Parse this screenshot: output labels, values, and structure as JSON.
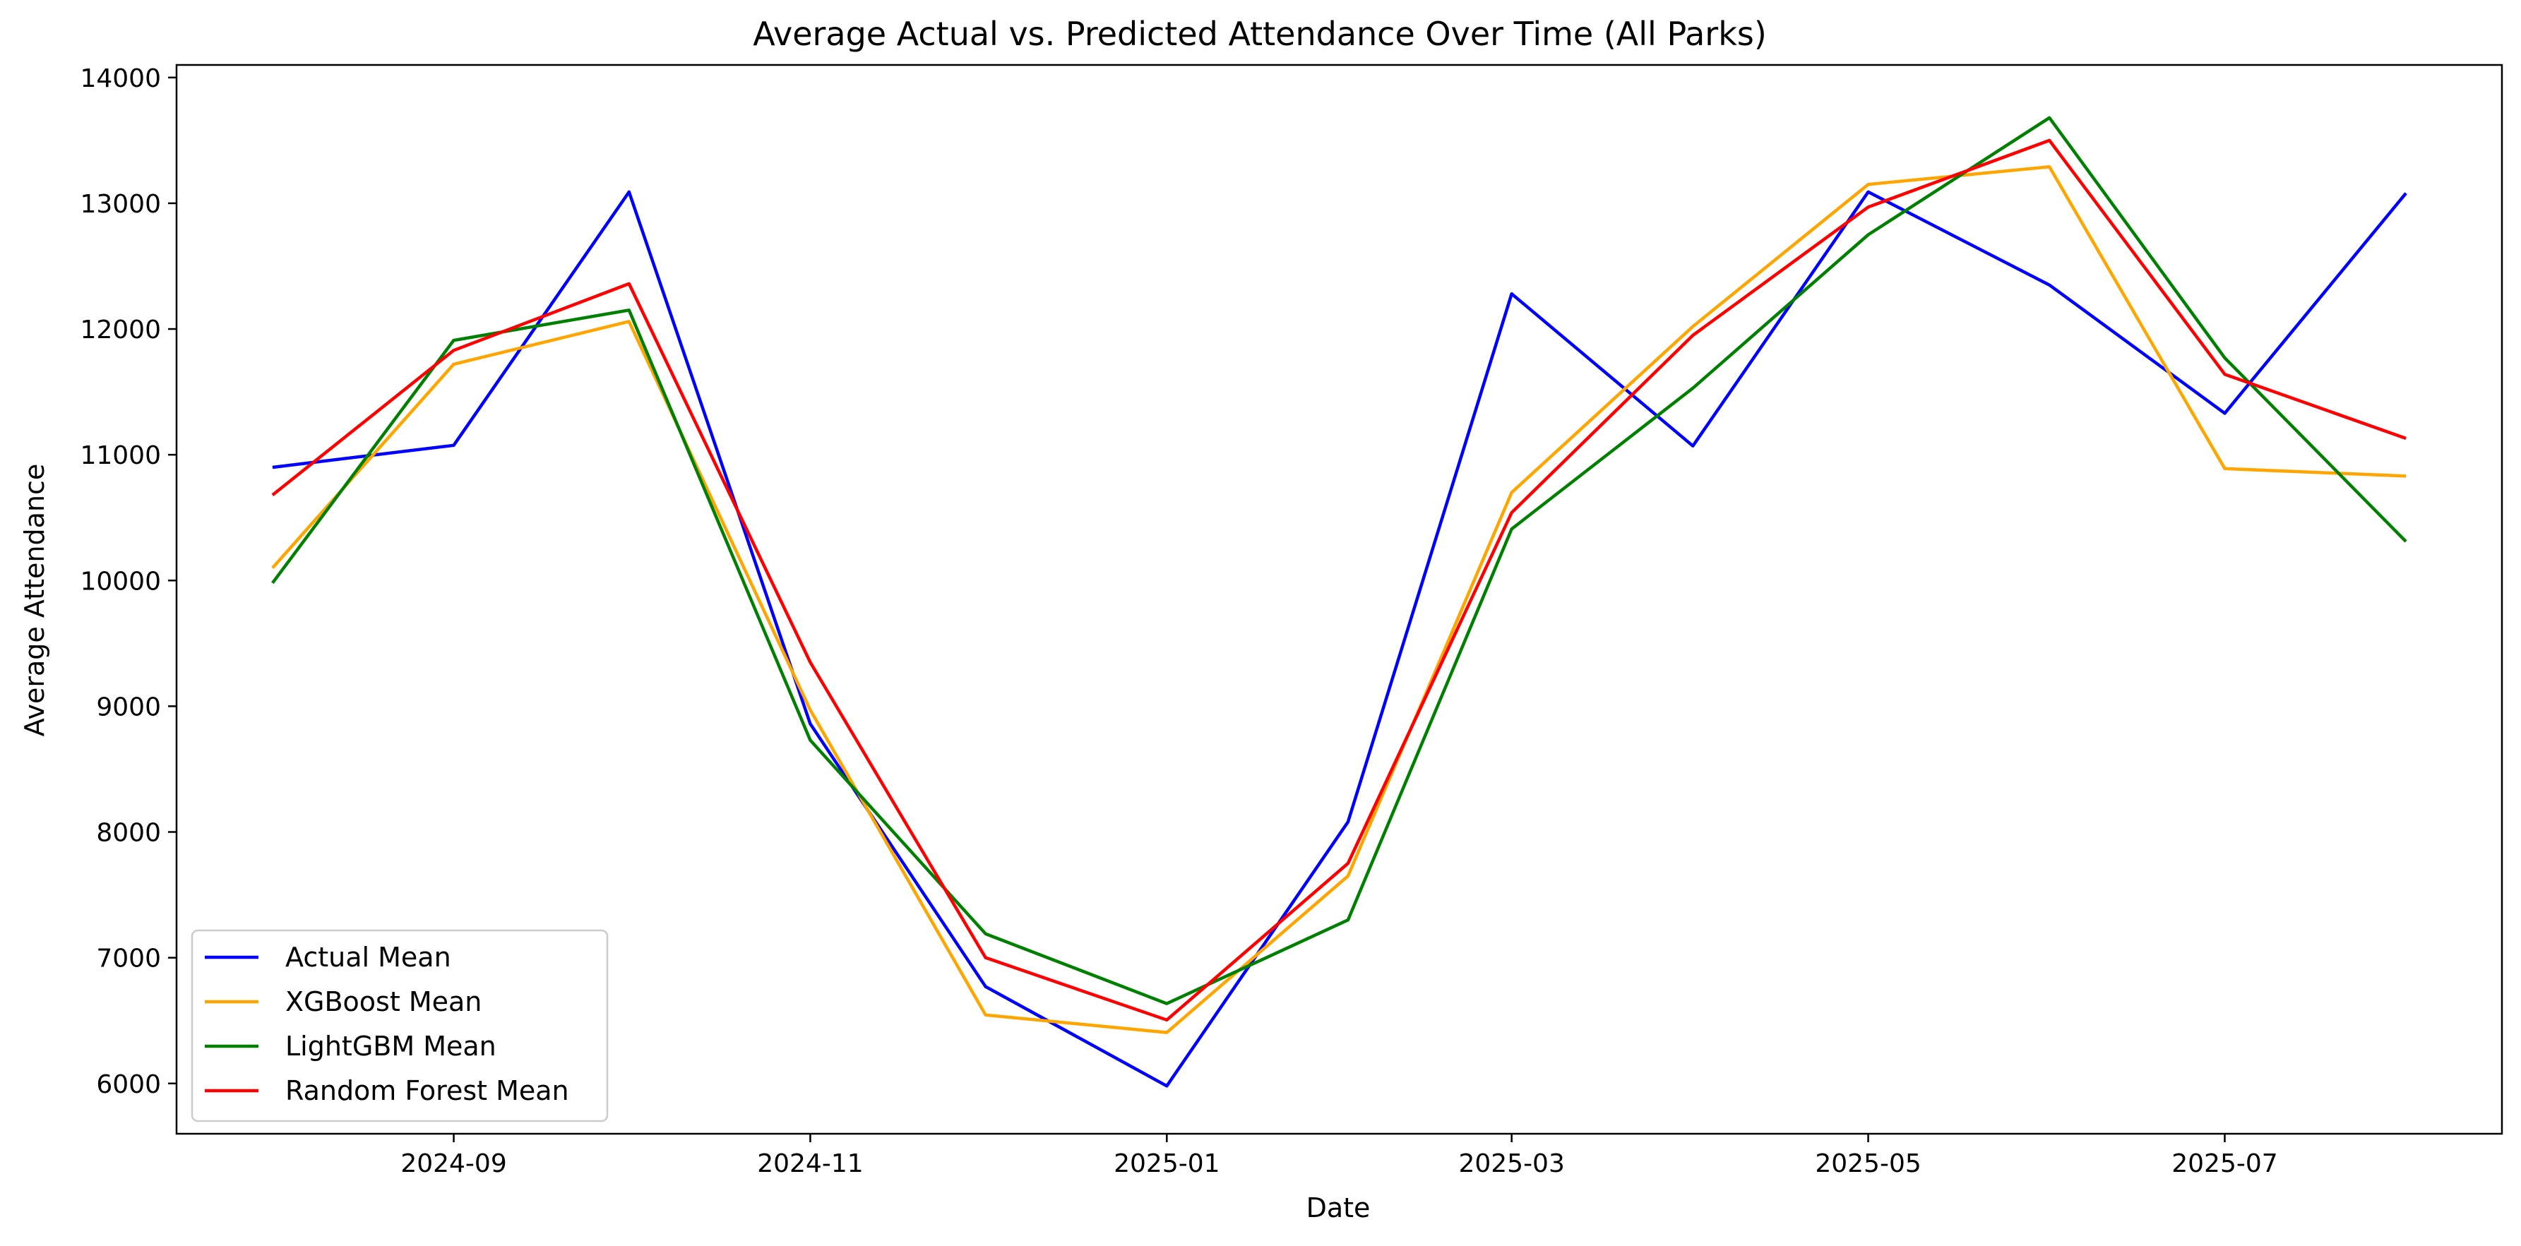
{
  "chart_data": {
    "type": "line",
    "title": "Average Actual vs. Predicted Attendance Over Time (All Parks)",
    "xlabel": "Date",
    "ylabel": "Average Attendance",
    "x": [
      "2024-08",
      "2024-09",
      "2024-10",
      "2024-11",
      "2024-12",
      "2025-01",
      "2025-02",
      "2025-03",
      "2025-04",
      "2025-05",
      "2025-06",
      "2025-07",
      "2025-08"
    ],
    "x_ticks": [
      "2024-09",
      "2024-11",
      "2025-01",
      "2025-03",
      "2025-05",
      "2025-07"
    ],
    "ylim": [
      5600,
      14100
    ],
    "y_ticks": [
      6000,
      7000,
      8000,
      9000,
      10000,
      11000,
      12000,
      13000,
      14000
    ],
    "grid": false,
    "legend_position": "lower-left",
    "series": [
      {
        "name": "Actual Mean",
        "color": "#0000ff",
        "values": [
          10900,
          11075,
          13090,
          8860,
          6770,
          5980,
          8080,
          12280,
          11070,
          13090,
          12350,
          11330,
          13080
        ]
      },
      {
        "name": "XGBoost Mean",
        "color": "#ffa500",
        "values": [
          10100,
          11720,
          12060,
          8970,
          6545,
          6405,
          7650,
          10700,
          12020,
          13150,
          13290,
          10890,
          10830
        ]
      },
      {
        "name": "LightGBM Mean",
        "color": "#008000",
        "values": [
          9980,
          11910,
          12150,
          8730,
          7190,
          6635,
          7300,
          10410,
          11530,
          12750,
          13680,
          11770,
          10310
        ]
      },
      {
        "name": "Random Forest Mean",
        "color": "#ff0000",
        "values": [
          10680,
          11830,
          12360,
          9350,
          7000,
          6505,
          7750,
          10540,
          11950,
          12970,
          13500,
          11640,
          11130
        ]
      }
    ]
  }
}
